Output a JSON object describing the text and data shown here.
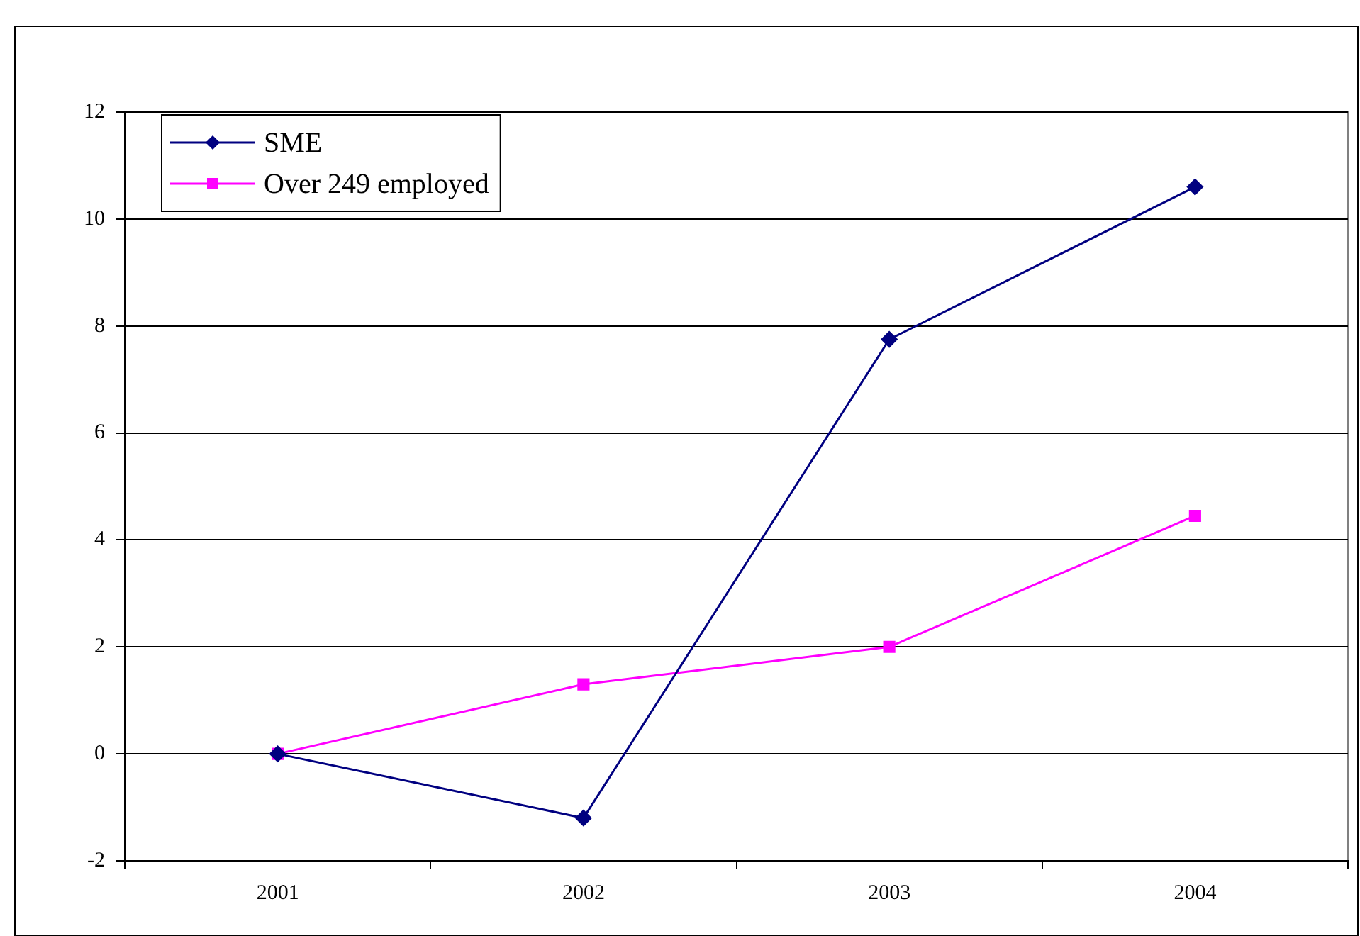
{
  "chart_data": {
    "type": "line",
    "categories": [
      "2001",
      "2002",
      "2003",
      "2004"
    ],
    "series": [
      {
        "name": "SME",
        "color": "#000080",
        "marker": "diamond",
        "values": [
          0,
          -1.2,
          7.75,
          10.6
        ]
      },
      {
        "name": "Over 249 employed",
        "color": "#ff00ff",
        "marker": "square",
        "values": [
          0,
          1.3,
          2.0,
          4.45
        ]
      }
    ],
    "ylim": [
      -2,
      12
    ],
    "yticks": [
      -2,
      0,
      2,
      4,
      6,
      8,
      10,
      12
    ],
    "grid": "y",
    "legend": "top left"
  }
}
